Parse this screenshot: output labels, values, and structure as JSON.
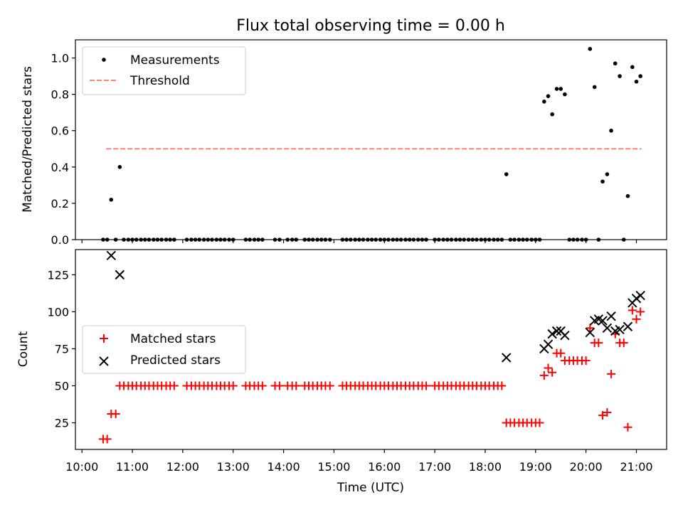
{
  "chart_data": [
    {
      "type": "scatter",
      "title": "Flux total observing time = 0.00 h",
      "ylabel": "Matched/Predicted stars",
      "xlabel": "",
      "ylim": [
        0,
        1.1
      ],
      "yticks": [
        "0.0",
        "0.2",
        "0.4",
        "0.6",
        "0.8",
        "1.0"
      ],
      "ytick_values": [
        0,
        0.2,
        0.4,
        0.6,
        0.8,
        1.0
      ],
      "grid": false,
      "legend_position": "top-left",
      "threshold": {
        "name": "Threshold",
        "value": 0.5,
        "x_start": 10.48,
        "x_end": 21.1,
        "color": "#ff7f7f"
      },
      "series": [
        {
          "name": "Measurements",
          "color": "#000000",
          "marker": "dot",
          "points": [
            [
              10.42,
              0
            ],
            [
              10.5,
              0
            ],
            [
              10.58,
              0.22
            ],
            [
              10.67,
              0
            ],
            [
              10.75,
              0.4
            ],
            [
              10.83,
              0
            ],
            [
              10.92,
              0
            ],
            [
              11.0,
              0
            ],
            [
              11.08,
              0
            ],
            [
              11.17,
              0
            ],
            [
              11.25,
              0
            ],
            [
              11.33,
              0
            ],
            [
              11.42,
              0
            ],
            [
              11.5,
              0
            ],
            [
              11.58,
              0
            ],
            [
              11.67,
              0
            ],
            [
              11.75,
              0
            ],
            [
              11.83,
              0
            ],
            [
              12.08,
              0
            ],
            [
              12.17,
              0
            ],
            [
              12.25,
              0
            ],
            [
              12.33,
              0
            ],
            [
              12.42,
              0
            ],
            [
              12.5,
              0
            ],
            [
              12.58,
              0
            ],
            [
              12.67,
              0
            ],
            [
              12.75,
              0
            ],
            [
              12.83,
              0
            ],
            [
              12.92,
              0
            ],
            [
              13.0,
              0
            ],
            [
              13.25,
              0
            ],
            [
              13.33,
              0
            ],
            [
              13.42,
              0
            ],
            [
              13.5,
              0
            ],
            [
              13.58,
              0
            ],
            [
              13.83,
              0
            ],
            [
              13.92,
              0
            ],
            [
              14.08,
              0
            ],
            [
              14.17,
              0
            ],
            [
              14.25,
              0
            ],
            [
              14.42,
              0
            ],
            [
              14.5,
              0
            ],
            [
              14.58,
              0
            ],
            [
              14.67,
              0
            ],
            [
              14.75,
              0
            ],
            [
              14.83,
              0
            ],
            [
              14.92,
              0
            ],
            [
              15.17,
              0
            ],
            [
              15.25,
              0
            ],
            [
              15.33,
              0
            ],
            [
              15.42,
              0
            ],
            [
              15.5,
              0
            ],
            [
              15.58,
              0
            ],
            [
              15.67,
              0
            ],
            [
              15.75,
              0
            ],
            [
              15.83,
              0
            ],
            [
              15.92,
              0
            ],
            [
              16.0,
              0
            ],
            [
              16.08,
              0
            ],
            [
              16.17,
              0
            ],
            [
              16.25,
              0
            ],
            [
              16.33,
              0
            ],
            [
              16.42,
              0
            ],
            [
              16.5,
              0
            ],
            [
              16.58,
              0
            ],
            [
              16.67,
              0
            ],
            [
              16.75,
              0
            ],
            [
              16.83,
              0
            ],
            [
              17.0,
              0
            ],
            [
              17.08,
              0
            ],
            [
              17.17,
              0
            ],
            [
              17.25,
              0
            ],
            [
              17.33,
              0
            ],
            [
              17.42,
              0
            ],
            [
              17.5,
              0
            ],
            [
              17.58,
              0
            ],
            [
              17.67,
              0
            ],
            [
              17.75,
              0
            ],
            [
              17.83,
              0
            ],
            [
              17.92,
              0
            ],
            [
              18.0,
              0
            ],
            [
              18.08,
              0
            ],
            [
              18.17,
              0
            ],
            [
              18.25,
              0
            ],
            [
              18.33,
              0
            ],
            [
              18.42,
              0.36
            ],
            [
              18.5,
              0
            ],
            [
              18.58,
              0
            ],
            [
              18.67,
              0
            ],
            [
              18.75,
              0
            ],
            [
              18.83,
              0
            ],
            [
              18.92,
              0
            ],
            [
              19.0,
              0
            ],
            [
              19.08,
              0
            ],
            [
              19.17,
              0.76
            ],
            [
              19.25,
              0.79
            ],
            [
              19.33,
              0.69
            ],
            [
              19.42,
              0.83
            ],
            [
              19.5,
              0.83
            ],
            [
              19.58,
              0.8
            ],
            [
              19.67,
              0
            ],
            [
              19.75,
              0
            ],
            [
              19.83,
              0
            ],
            [
              19.92,
              0
            ],
            [
              20.0,
              0
            ],
            [
              20.08,
              1.05
            ],
            [
              20.17,
              0.84
            ],
            [
              20.25,
              0
            ],
            [
              20.33,
              0.32
            ],
            [
              20.42,
              0.36
            ],
            [
              20.5,
              0.6
            ],
            [
              20.58,
              0.97
            ],
            [
              20.67,
              0.9
            ],
            [
              20.75,
              0
            ],
            [
              20.83,
              0.24
            ],
            [
              20.92,
              0.95
            ],
            [
              21.0,
              0.87
            ],
            [
              21.08,
              0.9
            ]
          ]
        }
      ]
    },
    {
      "type": "scatter",
      "title": "",
      "ylabel": "Count",
      "xlabel": "Time (UTC)",
      "ylim": [
        7,
        142
      ],
      "yticks": [
        "25",
        "50",
        "75",
        "100",
        "125"
      ],
      "ytick_values": [
        25,
        50,
        75,
        100,
        125
      ],
      "xlim": [
        9.87,
        21.6
      ],
      "xticks": [
        "10:00",
        "11:00",
        "12:00",
        "13:00",
        "14:00",
        "15:00",
        "16:00",
        "17:00",
        "18:00",
        "19:00",
        "20:00",
        "21:00"
      ],
      "xtick_values": [
        10,
        11,
        12,
        13,
        14,
        15,
        16,
        17,
        18,
        19,
        20,
        21
      ],
      "grid": false,
      "legend_position": "center-left",
      "series": [
        {
          "name": "Matched stars",
          "color": "#ff0000",
          "marker": "plus",
          "points": [
            [
              10.42,
              14
            ],
            [
              10.5,
              14
            ],
            [
              10.58,
              31
            ],
            [
              10.67,
              31
            ],
            [
              10.75,
              50
            ],
            [
              10.83,
              50
            ],
            [
              10.92,
              50
            ],
            [
              11.0,
              50
            ],
            [
              11.08,
              50
            ],
            [
              11.17,
              50
            ],
            [
              11.25,
              50
            ],
            [
              11.33,
              50
            ],
            [
              11.42,
              50
            ],
            [
              11.5,
              50
            ],
            [
              11.58,
              50
            ],
            [
              11.67,
              50
            ],
            [
              11.75,
              50
            ],
            [
              11.83,
              50
            ],
            [
              12.08,
              50
            ],
            [
              12.17,
              50
            ],
            [
              12.25,
              50
            ],
            [
              12.33,
              50
            ],
            [
              12.42,
              50
            ],
            [
              12.5,
              50
            ],
            [
              12.58,
              50
            ],
            [
              12.67,
              50
            ],
            [
              12.75,
              50
            ],
            [
              12.83,
              50
            ],
            [
              12.92,
              50
            ],
            [
              13.0,
              50
            ],
            [
              13.25,
              50
            ],
            [
              13.33,
              50
            ],
            [
              13.42,
              50
            ],
            [
              13.5,
              50
            ],
            [
              13.58,
              50
            ],
            [
              13.83,
              50
            ],
            [
              13.92,
              50
            ],
            [
              14.08,
              50
            ],
            [
              14.17,
              50
            ],
            [
              14.25,
              50
            ],
            [
              14.42,
              50
            ],
            [
              14.5,
              50
            ],
            [
              14.58,
              50
            ],
            [
              14.67,
              50
            ],
            [
              14.75,
              50
            ],
            [
              14.83,
              50
            ],
            [
              14.92,
              50
            ],
            [
              15.17,
              50
            ],
            [
              15.25,
              50
            ],
            [
              15.33,
              50
            ],
            [
              15.42,
              50
            ],
            [
              15.5,
              50
            ],
            [
              15.58,
              50
            ],
            [
              15.67,
              50
            ],
            [
              15.75,
              50
            ],
            [
              15.83,
              50
            ],
            [
              15.92,
              50
            ],
            [
              16.0,
              50
            ],
            [
              16.08,
              50
            ],
            [
              16.17,
              50
            ],
            [
              16.25,
              50
            ],
            [
              16.33,
              50
            ],
            [
              16.42,
              50
            ],
            [
              16.5,
              50
            ],
            [
              16.58,
              50
            ],
            [
              16.67,
              50
            ],
            [
              16.75,
              50
            ],
            [
              16.83,
              50
            ],
            [
              17.0,
              50
            ],
            [
              17.08,
              50
            ],
            [
              17.17,
              50
            ],
            [
              17.25,
              50
            ],
            [
              17.33,
              50
            ],
            [
              17.42,
              50
            ],
            [
              17.5,
              50
            ],
            [
              17.58,
              50
            ],
            [
              17.67,
              50
            ],
            [
              17.75,
              50
            ],
            [
              17.83,
              50
            ],
            [
              17.92,
              50
            ],
            [
              18.0,
              50
            ],
            [
              18.08,
              50
            ],
            [
              18.17,
              50
            ],
            [
              18.25,
              50
            ],
            [
              18.33,
              50
            ],
            [
              18.42,
              25
            ],
            [
              18.5,
              25
            ],
            [
              18.58,
              25
            ],
            [
              18.67,
              25
            ],
            [
              18.75,
              25
            ],
            [
              18.83,
              25
            ],
            [
              18.92,
              25
            ],
            [
              19.0,
              25
            ],
            [
              19.08,
              25
            ],
            [
              19.17,
              57
            ],
            [
              19.25,
              62
            ],
            [
              19.33,
              59
            ],
            [
              19.42,
              72
            ],
            [
              19.5,
              72
            ],
            [
              19.58,
              67
            ],
            [
              19.67,
              67
            ],
            [
              19.75,
              67
            ],
            [
              19.83,
              67
            ],
            [
              19.92,
              67
            ],
            [
              20.0,
              67
            ],
            [
              20.08,
              89
            ],
            [
              20.17,
              79
            ],
            [
              20.25,
              79
            ],
            [
              20.33,
              30
            ],
            [
              20.42,
              32
            ],
            [
              20.5,
              58
            ],
            [
              20.58,
              85
            ],
            [
              20.67,
              79
            ],
            [
              20.75,
              79
            ],
            [
              20.83,
              22
            ],
            [
              20.92,
              101
            ],
            [
              21.0,
              95
            ],
            [
              21.08,
              100
            ]
          ]
        },
        {
          "name": "Predicted stars",
          "color": "#000000",
          "marker": "x",
          "points": [
            [
              10.58,
              138
            ],
            [
              10.75,
              125
            ],
            [
              18.42,
              69
            ],
            [
              19.17,
              75
            ],
            [
              19.25,
              78
            ],
            [
              19.33,
              85
            ],
            [
              19.42,
              87
            ],
            [
              19.5,
              87
            ],
            [
              19.58,
              84
            ],
            [
              20.08,
              86
            ],
            [
              20.17,
              94
            ],
            [
              20.25,
              95
            ],
            [
              20.33,
              94
            ],
            [
              20.42,
              89
            ],
            [
              20.5,
              97
            ],
            [
              20.58,
              87
            ],
            [
              20.67,
              88
            ],
            [
              20.83,
              90
            ],
            [
              20.92,
              106
            ],
            [
              21.0,
              109
            ],
            [
              21.08,
              111
            ]
          ]
        }
      ]
    }
  ]
}
